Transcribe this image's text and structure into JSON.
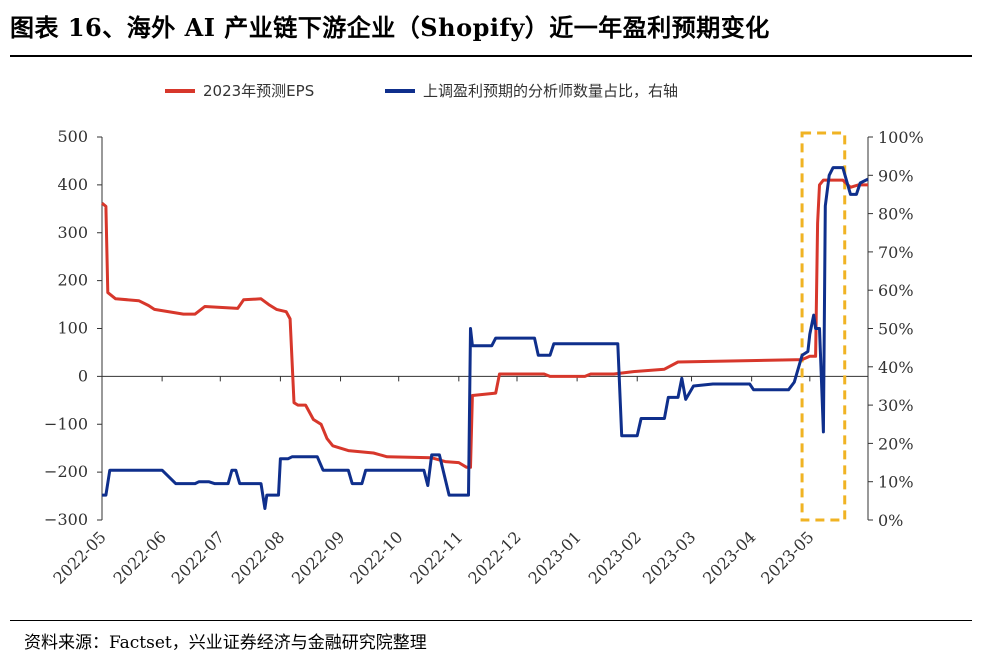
{
  "figure": {
    "title": "图表 16、海外 AI 产业链下游企业（Shopify）近一年盈利预期变化",
    "source": "资料来源：Factset，兴业证券经济与金融研究院整理"
  },
  "colors": {
    "eps": "#d7372b",
    "share": "#0f2f8c",
    "highlight": "#f0b323",
    "axis": "#333333"
  },
  "chart_data": {
    "type": "line",
    "title": "",
    "legend_position": "top-center",
    "grid": false,
    "highlight_region": {
      "x_start": "2023-04-27",
      "x_end": "2023-05-19",
      "y_left": [
        -300,
        500
      ]
    },
    "x_axis": {
      "type": "date",
      "range": [
        "2022-05-01",
        "2023-05-31"
      ],
      "tick_labels": [
        "2022-05",
        "2022-06",
        "2022-07",
        "2022-08",
        "2022-09",
        "2022-10",
        "2022-11",
        "2022-12",
        "2023-01",
        "2023-02",
        "2023-03",
        "2023-04",
        "2023-05"
      ],
      "tick_dates": [
        "2022-05-01",
        "2022-06-01",
        "2022-07-01",
        "2022-08-01",
        "2022-09-01",
        "2022-10-01",
        "2022-11-01",
        "2022-12-01",
        "2023-01-01",
        "2023-02-01",
        "2023-03-01",
        "2023-04-01",
        "2023-05-01"
      ]
    },
    "y_left": {
      "range": [
        -300,
        500
      ],
      "ticks": [
        -300,
        -200,
        -100,
        0,
        100,
        200,
        300,
        400,
        500
      ],
      "tick_labels": [
        "−300",
        "−200",
        "−100",
        "0",
        "100",
        "200",
        "300",
        "400",
        "500"
      ]
    },
    "y_right": {
      "range": [
        0,
        100
      ],
      "ticks": [
        0,
        10,
        20,
        30,
        40,
        50,
        60,
        70,
        80,
        90,
        100
      ],
      "tick_labels": [
        "0%",
        "10%",
        "20%",
        "30%",
        "40%",
        "50%",
        "60%",
        "70%",
        "80%",
        "90%",
        "100%"
      ]
    },
    "series": [
      {
        "name": "2023年预测EPS",
        "axis": "left",
        "points": [
          [
            "2022-05-01",
            362
          ],
          [
            "2022-05-03",
            355
          ],
          [
            "2022-05-04",
            175
          ],
          [
            "2022-05-08",
            162
          ],
          [
            "2022-05-20",
            158
          ],
          [
            "2022-05-25",
            148
          ],
          [
            "2022-05-28",
            140
          ],
          [
            "2022-06-12",
            130
          ],
          [
            "2022-06-18",
            130
          ],
          [
            "2022-06-23",
            146
          ],
          [
            "2022-07-10",
            142
          ],
          [
            "2022-07-13",
            160
          ],
          [
            "2022-07-22",
            162
          ],
          [
            "2022-07-26",
            150
          ],
          [
            "2022-07-30",
            140
          ],
          [
            "2022-08-04",
            135
          ],
          [
            "2022-08-06",
            120
          ],
          [
            "2022-08-08",
            -55
          ],
          [
            "2022-08-10",
            -60
          ],
          [
            "2022-08-14",
            -60
          ],
          [
            "2022-08-18",
            -90
          ],
          [
            "2022-08-22",
            -100
          ],
          [
            "2022-08-25",
            -130
          ],
          [
            "2022-08-28",
            -145
          ],
          [
            "2022-09-05",
            -155
          ],
          [
            "2022-09-18",
            -160
          ],
          [
            "2022-09-25",
            -168
          ],
          [
            "2022-10-18",
            -170
          ],
          [
            "2022-10-25",
            -178
          ],
          [
            "2022-11-01",
            -180
          ],
          [
            "2022-11-05",
            -190
          ],
          [
            "2022-11-07",
            -190
          ],
          [
            "2022-11-08",
            -40
          ],
          [
            "2022-11-20",
            -35
          ],
          [
            "2022-11-22",
            5
          ],
          [
            "2022-12-15",
            5
          ],
          [
            "2022-12-18",
            0
          ],
          [
            "2023-01-05",
            0
          ],
          [
            "2023-01-08",
            5
          ],
          [
            "2023-01-20",
            5
          ],
          [
            "2023-01-30",
            10
          ],
          [
            "2023-02-15",
            15
          ],
          [
            "2023-02-22",
            30
          ],
          [
            "2023-04-27",
            35
          ],
          [
            "2023-05-01",
            42
          ],
          [
            "2023-05-04",
            42
          ],
          [
            "2023-05-05",
            320
          ],
          [
            "2023-05-06",
            400
          ],
          [
            "2023-05-08",
            410
          ],
          [
            "2023-05-18",
            410
          ],
          [
            "2023-05-22",
            395
          ],
          [
            "2023-05-26",
            400
          ],
          [
            "2023-05-31",
            400
          ]
        ]
      },
      {
        "name": "上调盈利预期的分析师数量占比，右轴",
        "axis": "right",
        "points": [
          [
            "2022-05-01",
            6.5
          ],
          [
            "2022-05-03",
            6.5
          ],
          [
            "2022-05-05",
            13
          ],
          [
            "2022-05-25",
            13
          ],
          [
            "2022-06-01",
            13
          ],
          [
            "2022-06-08",
            9.5
          ],
          [
            "2022-06-18",
            9.5
          ],
          [
            "2022-06-20",
            10
          ],
          [
            "2022-06-25",
            10
          ],
          [
            "2022-06-28",
            9.5
          ],
          [
            "2022-07-05",
            9.5
          ],
          [
            "2022-07-07",
            13
          ],
          [
            "2022-07-09",
            13
          ],
          [
            "2022-07-11",
            9.5
          ],
          [
            "2022-07-22",
            9.5
          ],
          [
            "2022-07-24",
            3
          ],
          [
            "2022-07-25",
            6.5
          ],
          [
            "2022-07-31",
            6.5
          ],
          [
            "2022-08-01",
            16
          ],
          [
            "2022-08-05",
            16
          ],
          [
            "2022-08-07",
            16.5
          ],
          [
            "2022-08-20",
            16.5
          ],
          [
            "2022-08-23",
            13
          ],
          [
            "2022-09-05",
            13
          ],
          [
            "2022-09-07",
            9.5
          ],
          [
            "2022-09-12",
            9.5
          ],
          [
            "2022-09-14",
            13
          ],
          [
            "2022-10-14",
            13
          ],
          [
            "2022-10-16",
            9
          ],
          [
            "2022-10-18",
            17
          ],
          [
            "2022-10-22",
            17
          ],
          [
            "2022-10-27",
            6.5
          ],
          [
            "2022-11-06",
            6.5
          ],
          [
            "2022-11-07",
            50
          ],
          [
            "2022-11-08",
            45.5
          ],
          [
            "2022-11-18",
            45.5
          ],
          [
            "2022-11-20",
            47.5
          ],
          [
            "2022-12-10",
            47.5
          ],
          [
            "2022-12-12",
            43
          ],
          [
            "2022-12-18",
            43
          ],
          [
            "2022-12-20",
            46
          ],
          [
            "2023-01-22",
            46
          ],
          [
            "2023-01-24",
            22
          ],
          [
            "2023-02-01",
            22
          ],
          [
            "2023-02-03",
            26.5
          ],
          [
            "2023-02-15",
            26.5
          ],
          [
            "2023-02-17",
            32
          ],
          [
            "2023-02-22",
            32
          ],
          [
            "2023-02-24",
            37
          ],
          [
            "2023-02-26",
            31.5
          ],
          [
            "2023-03-02",
            35
          ],
          [
            "2023-03-12",
            35.5
          ],
          [
            "2023-03-31",
            35.5
          ],
          [
            "2023-04-02",
            34
          ],
          [
            "2023-04-20",
            34
          ],
          [
            "2023-04-23",
            36
          ],
          [
            "2023-04-27",
            43
          ],
          [
            "2023-04-30",
            44
          ],
          [
            "2023-05-01",
            48.5
          ],
          [
            "2023-05-03",
            53.5
          ],
          [
            "2023-05-04",
            50
          ],
          [
            "2023-05-06",
            50
          ],
          [
            "2023-05-08",
            23
          ],
          [
            "2023-05-09",
            82
          ],
          [
            "2023-05-11",
            90
          ],
          [
            "2023-05-13",
            92
          ],
          [
            "2023-05-18",
            92
          ],
          [
            "2023-05-22",
            85
          ],
          [
            "2023-05-25",
            85
          ],
          [
            "2023-05-27",
            88
          ],
          [
            "2023-05-31",
            89
          ]
        ]
      }
    ]
  }
}
